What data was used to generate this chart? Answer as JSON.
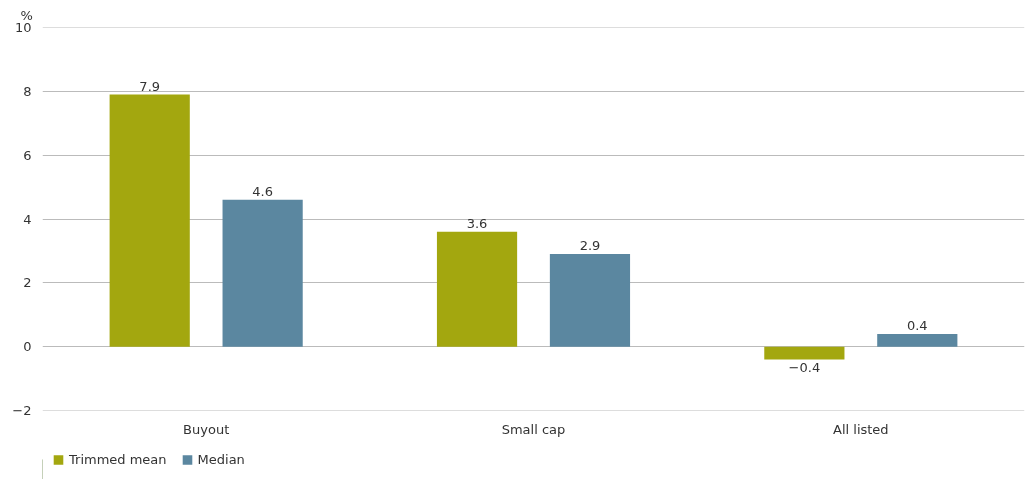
{
  "chart_data": {
    "type": "bar",
    "ylabel": "%",
    "categories": [
      "Buyout",
      "Small cap",
      "All listed"
    ],
    "series": [
      {
        "name": "Trimmed mean",
        "color": "#a3a70f",
        "values": [
          7.9,
          3.6,
          -0.4
        ],
        "value_labels": [
          "7.9",
          "3.6",
          "−0.4"
        ]
      },
      {
        "name": "Median",
        "color": "#5b87a0",
        "values": [
          4.6,
          2.9,
          0.4
        ],
        "value_labels": [
          "4.6",
          "2.9",
          "0.4"
        ]
      }
    ],
    "ylim": [
      -2,
      10
    ],
    "yticks": [
      {
        "value": -2,
        "label": "−2"
      },
      0,
      2,
      4,
      6,
      8,
      10
    ],
    "grid": "y",
    "legend": "bottom left"
  }
}
